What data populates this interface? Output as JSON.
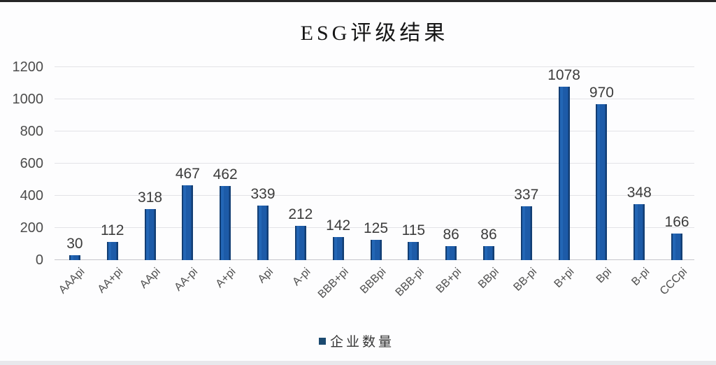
{
  "window": {
    "background": "#fdfdfe",
    "top_border_color": "#262626",
    "bottom_bar_color": "#e8e8ec"
  },
  "chart_data": {
    "type": "bar",
    "title": "ESG评级结果",
    "categories": [
      "AAApi",
      "AA+pi",
      "AApi",
      "AA-pi",
      "A+pi",
      "Api",
      "A-pi",
      "BBB+pi",
      "BBBpi",
      "BBB-pi",
      "BB+pi",
      "BBpi",
      "BB-pi",
      "B+pi",
      "Bpi",
      "B-pi",
      "CCCpi"
    ],
    "series": [
      {
        "name": "企业数量",
        "values": [
          30,
          112,
          318,
          467,
          462,
          339,
          212,
          142,
          125,
          115,
          86,
          86,
          337,
          1078,
          970,
          348,
          166
        ]
      }
    ],
    "value_labels": [
      "30",
      "112",
      "318",
      "467",
      "462",
      "339",
      "212",
      "142",
      "125",
      "115",
      "86",
      "86",
      "337",
      "1078",
      "970",
      "348",
      "166"
    ],
    "xlabel": "",
    "ylabel": "",
    "ylim": [
      0,
      1200
    ],
    "yticks": [
      0,
      200,
      400,
      600,
      800,
      1000,
      1200
    ],
    "grid": true,
    "legend_position": "bottom",
    "bar_color": "#1d5ba8",
    "bar_edge_color": "#123e74",
    "bar_highlight_color": "#2366b5",
    "legend_marker_color": "#1c4a70",
    "gridline_color": "#e3e3e7",
    "axis_line_color": "#c6c6cb",
    "tick_label_color": "#4c4c4c",
    "value_label_color": "#3c3c3c",
    "category_label_color": "#4f4f4f",
    "title_color": "#151515"
  }
}
